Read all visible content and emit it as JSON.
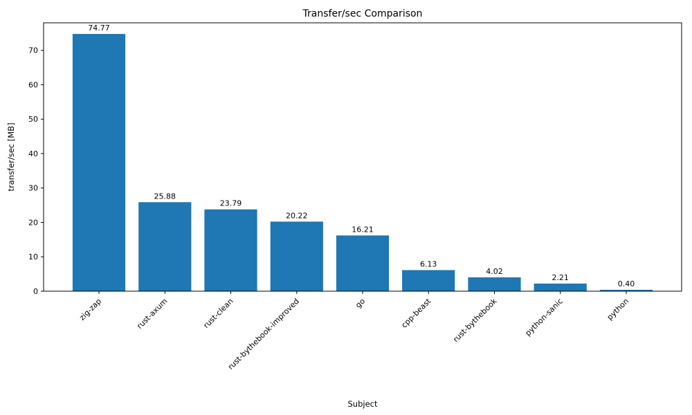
{
  "chart_data": {
    "type": "bar",
    "title": "Transfer/sec Comparison",
    "xlabel": "Subject",
    "ylabel": "transfer/sec [MB]",
    "categories": [
      "zig-zap",
      "rust-axum",
      "rust-clean",
      "rust-bythebook-improved",
      "go",
      "cpp-beast",
      "rust-bythebook",
      "python-sanic",
      "python"
    ],
    "values": [
      74.77,
      25.88,
      23.79,
      20.22,
      16.21,
      6.13,
      4.02,
      2.21,
      0.4
    ],
    "bar_labels": [
      "74.77",
      "25.88",
      "23.79",
      "20.22",
      "16.21",
      "6.13",
      "4.02",
      "2.21",
      "0.40"
    ],
    "ylim": [
      0,
      78
    ],
    "yticks": [
      0,
      10,
      20,
      30,
      40,
      50,
      60,
      70
    ],
    "bar_color": "#1f77b4",
    "axis_color": "#000000",
    "grid": false,
    "legend": null,
    "x_tick_rotation": 45
  }
}
